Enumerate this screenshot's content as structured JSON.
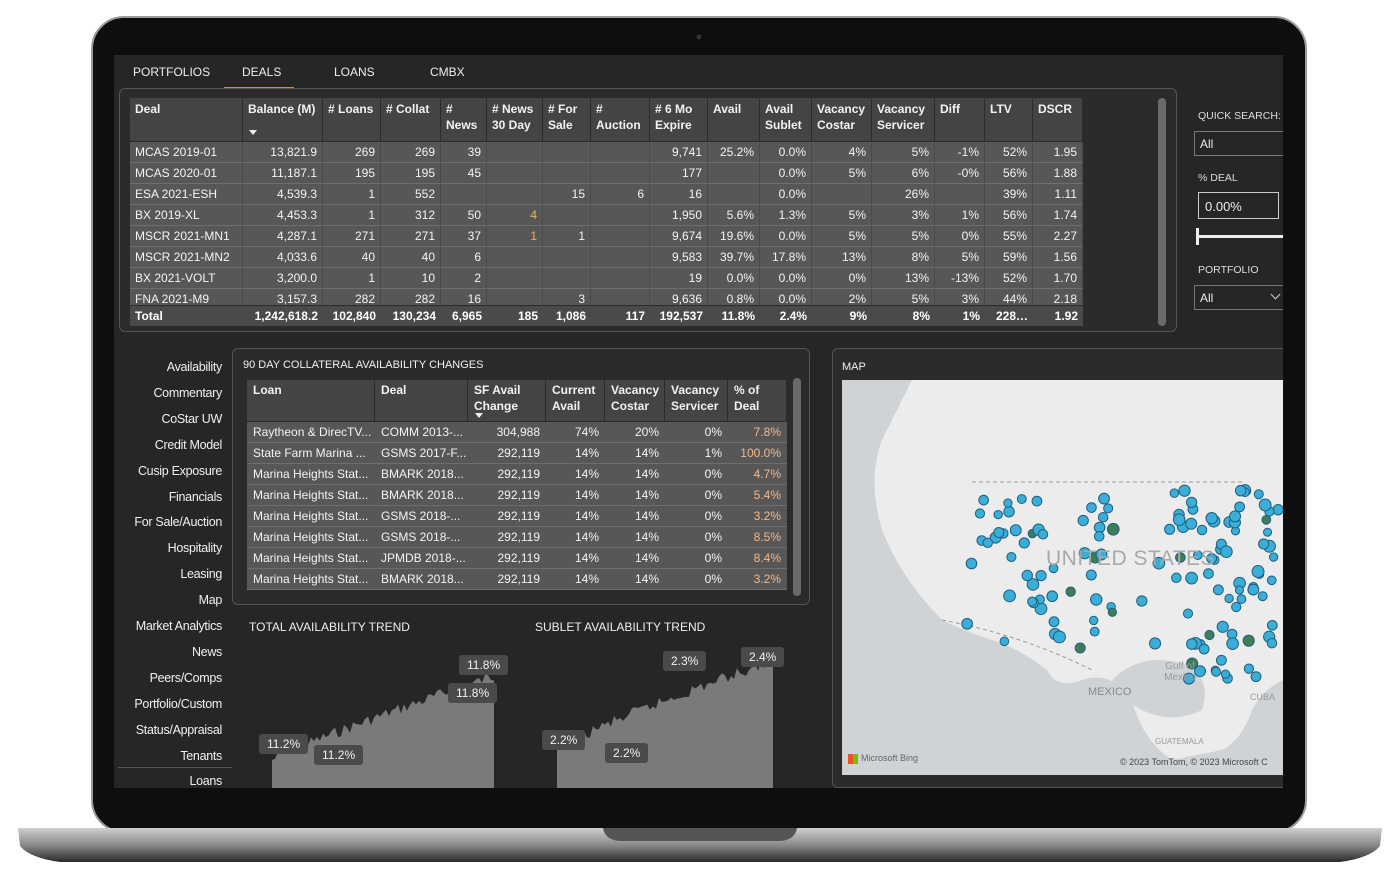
{
  "tabs": [
    "PORTFOLIOS",
    "DEALS",
    "LOANS",
    "CMBX"
  ],
  "deals_table": {
    "headers": [
      "Deal",
      "Balance (M)",
      "# Loans",
      "# Collat",
      "# News",
      "# News 30 Day",
      "# For Sale",
      "# Auction",
      "# 6 Mo Expire",
      "Avail",
      "Avail Sublet",
      "Vacancy Costar",
      "Vacancy Servicer",
      "Diff",
      "LTV",
      "DSCR"
    ],
    "rows": [
      [
        "MCAS 2019-01",
        "13,821.9",
        "269",
        "269",
        "39",
        null,
        null,
        null,
        "9,741",
        "25.2%",
        "0.0%",
        "4%",
        "5%",
        "-1%",
        "52%",
        "1.95"
      ],
      [
        "MCAS 2020-01",
        "11,187.1",
        "195",
        "195",
        "45",
        null,
        null,
        null,
        "177",
        null,
        "0.0%",
        "5%",
        "6%",
        "-0%",
        "56%",
        "1.88"
      ],
      [
        "ESA 2021-ESH",
        "4,539.3",
        "1",
        "552",
        null,
        null,
        "15",
        "6",
        "16",
        null,
        "0.0%",
        null,
        "26%",
        null,
        "39%",
        "1.11"
      ],
      [
        "BX 2019-XL",
        "4,453.3",
        "1",
        "312",
        "50",
        "4",
        null,
        null,
        "1,950",
        "5.6%",
        "1.3%",
        "5%",
        "3%",
        "1%",
        "56%",
        "1.74"
      ],
      [
        "MSCR 2021-MN1",
        "4,287.1",
        "271",
        "271",
        "37",
        "1",
        "1",
        null,
        "9,674",
        "19.6%",
        "0.0%",
        "5%",
        "5%",
        "0%",
        "55%",
        "2.27"
      ],
      [
        "MSCR 2021-MN2",
        "4,033.6",
        "40",
        "40",
        "6",
        null,
        null,
        null,
        "9,583",
        "39.7%",
        "17.8%",
        "13%",
        "8%",
        "5%",
        "59%",
        "1.56"
      ],
      [
        "BX 2021-VOLT",
        "3,200.0",
        "1",
        "10",
        "2",
        null,
        null,
        null,
        "19",
        "0.0%",
        "0.0%",
        "0%",
        "13%",
        "-13%",
        "52%",
        "1.70"
      ],
      [
        "FNA 2021-M9",
        "3,157.3",
        "282",
        "282",
        "16",
        null,
        "3",
        null,
        "9,636",
        "0.8%",
        "0.0%",
        "2%",
        "5%",
        "3%",
        "44%",
        "2.18"
      ]
    ],
    "total": [
      "Total",
      "1,242,618.2",
      "102,840",
      "130,234",
      "6,965",
      "185",
      "1,086",
      "117",
      "192,537",
      "11.8%",
      "2.4%",
      "9%",
      "8%",
      "1%",
      "228…",
      "1.92"
    ]
  },
  "filters": {
    "quick_search_label": "QUICK SEARCH: L",
    "quick_search_value": "All",
    "pct_deal_label": "% DEAL",
    "pct_deal_value": "0.00%",
    "portfolio_label": "PORTFOLIO",
    "portfolio_value": "All"
  },
  "nav": [
    "Availability",
    "Commentary",
    "CoStar UW",
    "Credit Model",
    "Cusip Exposure",
    "Financials",
    "For Sale/Auction",
    "Hospitality",
    "Leasing",
    "Map",
    "Market Analytics",
    "News",
    "Peers/Comps",
    "Portfolio/Custom",
    "Status/Appraisal",
    "Tenants",
    "Loans"
  ],
  "availability": {
    "title": "90 DAY COLLATERAL AVAILABILITY CHANGES",
    "headers": [
      "Loan",
      "Deal",
      "SF Avail Change",
      "Current Avail",
      "Vacancy Costar",
      "Vacancy Servicer",
      "% of Deal"
    ],
    "rows": [
      [
        "Raytheon & DirecTV...",
        "COMM 2013-...",
        "304,988",
        "74%",
        "20%",
        "0%",
        "7.8%"
      ],
      [
        "State Farm Marina ...",
        "GSMS 2017-F...",
        "292,119",
        "14%",
        "14%",
        "1%",
        "100.0%"
      ],
      [
        "Marina Heights Stat...",
        "BMARK 2018...",
        "292,119",
        "14%",
        "14%",
        "0%",
        "4.7%"
      ],
      [
        "Marina Heights Stat...",
        "BMARK 2018...",
        "292,119",
        "14%",
        "14%",
        "0%",
        "5.4%"
      ],
      [
        "Marina Heights Stat...",
        "GSMS 2018-...",
        "292,119",
        "14%",
        "14%",
        "0%",
        "3.2%"
      ],
      [
        "Marina Heights Stat...",
        "GSMS 2018-...",
        "292,119",
        "14%",
        "14%",
        "0%",
        "8.5%"
      ],
      [
        "Marina Heights Stat...",
        "JPMDB 2018-...",
        "292,119",
        "14%",
        "14%",
        "0%",
        "8.4%"
      ],
      [
        "Marina Heights Stat...",
        "BMARK 2018...",
        "292,119",
        "14%",
        "14%",
        "0%",
        "3.2%"
      ]
    ]
  },
  "trends": [
    {
      "title": "TOTAL AVAILABILITY TREND",
      "labels": [
        "11.8%",
        "11.8%",
        "11.2%",
        "11.2%"
      ]
    },
    {
      "title": "SUBLET AVAILABILITY TREND",
      "labels": [
        "2.3%",
        "2.4%",
        "2.2%",
        "2.2%"
      ]
    }
  ],
  "map": {
    "title": "MAP",
    "labels": [
      "UNITED STATES",
      "MEXICO",
      "Gulf of Mexico",
      "CUBA",
      "GUATEMALA"
    ],
    "attribution": "Microsoft Bing",
    "copyright": "© 2023 TomTom, © 2023 Microsoft C"
  }
}
